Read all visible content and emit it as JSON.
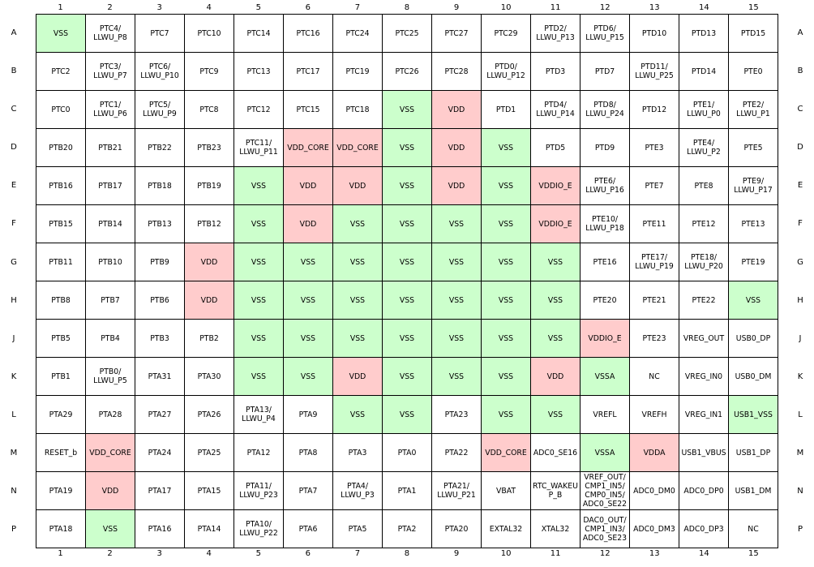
{
  "colors": {
    "vss": "#ccffcc",
    "vdd": "#ffcccc"
  },
  "columns": [
    "1",
    "2",
    "3",
    "4",
    "5",
    "6",
    "7",
    "8",
    "9",
    "10",
    "11",
    "12",
    "13",
    "14",
    "15"
  ],
  "rows": [
    {
      "label": "A",
      "cells": [
        {
          "text": "VSS",
          "t": "vss"
        },
        {
          "text": "PTC4/\nLLWU_P8"
        },
        {
          "text": "PTC7"
        },
        {
          "text": "PTC10"
        },
        {
          "text": "PTC14"
        },
        {
          "text": "PTC16"
        },
        {
          "text": "PTC24"
        },
        {
          "text": "PTC25"
        },
        {
          "text": "PTC27"
        },
        {
          "text": "PTC29"
        },
        {
          "text": "PTD2/\nLLWU_P13"
        },
        {
          "text": "PTD6/\nLLWU_P15"
        },
        {
          "text": "PTD10"
        },
        {
          "text": "PTD13"
        },
        {
          "text": "PTD15"
        }
      ]
    },
    {
      "label": "B",
      "cells": [
        {
          "text": "PTC2"
        },
        {
          "text": "PTC3/\nLLWU_P7"
        },
        {
          "text": "PTC6/\nLLWU_P10"
        },
        {
          "text": "PTC9"
        },
        {
          "text": "PTC13"
        },
        {
          "text": "PTC17"
        },
        {
          "text": "PTC19"
        },
        {
          "text": "PTC26"
        },
        {
          "text": "PTC28"
        },
        {
          "text": "PTD0/\nLLWU_P12"
        },
        {
          "text": "PTD3"
        },
        {
          "text": "PTD7"
        },
        {
          "text": "PTD11/\nLLWU_P25"
        },
        {
          "text": "PTD14"
        },
        {
          "text": "PTE0"
        }
      ]
    },
    {
      "label": "C",
      "cells": [
        {
          "text": "PTC0"
        },
        {
          "text": "PTC1/\nLLWU_P6"
        },
        {
          "text": "PTC5/\nLLWU_P9"
        },
        {
          "text": "PTC8"
        },
        {
          "text": "PTC12"
        },
        {
          "text": "PTC15"
        },
        {
          "text": "PTC18"
        },
        {
          "text": "VSS",
          "t": "vss"
        },
        {
          "text": "VDD",
          "t": "vdd"
        },
        {
          "text": "PTD1"
        },
        {
          "text": "PTD4/\nLLWU_P14"
        },
        {
          "text": "PTD8/\nLLWU_P24"
        },
        {
          "text": "PTD12"
        },
        {
          "text": "PTE1/\nLLWU_P0"
        },
        {
          "text": "PTE2/\nLLWU_P1"
        }
      ]
    },
    {
      "label": "D",
      "cells": [
        {
          "text": "PTB20"
        },
        {
          "text": "PTB21"
        },
        {
          "text": "PTB22"
        },
        {
          "text": "PTB23"
        },
        {
          "text": "PTC11/\nLLWU_P11"
        },
        {
          "text": "VDD_CORE",
          "t": "vdd"
        },
        {
          "text": "VDD_CORE",
          "t": "vdd"
        },
        {
          "text": "VSS",
          "t": "vss"
        },
        {
          "text": "VDD",
          "t": "vdd"
        },
        {
          "text": "VSS",
          "t": "vss"
        },
        {
          "text": "PTD5"
        },
        {
          "text": "PTD9"
        },
        {
          "text": "PTE3"
        },
        {
          "text": "PTE4/\nLLWU_P2"
        },
        {
          "text": "PTE5"
        }
      ]
    },
    {
      "label": "E",
      "cells": [
        {
          "text": "PTB16"
        },
        {
          "text": "PTB17"
        },
        {
          "text": "PTB18"
        },
        {
          "text": "PTB19"
        },
        {
          "text": "VSS",
          "t": "vss"
        },
        {
          "text": "VDD",
          "t": "vdd"
        },
        {
          "text": "VDD",
          "t": "vdd"
        },
        {
          "text": "VSS",
          "t": "vss"
        },
        {
          "text": "VDD",
          "t": "vdd"
        },
        {
          "text": "VSS",
          "t": "vss"
        },
        {
          "text": "VDDIO_E",
          "t": "vdd"
        },
        {
          "text": "PTE6/\nLLWU_P16"
        },
        {
          "text": "PTE7"
        },
        {
          "text": "PTE8"
        },
        {
          "text": "PTE9/\nLLWU_P17"
        }
      ]
    },
    {
      "label": "F",
      "cells": [
        {
          "text": "PTB15"
        },
        {
          "text": "PTB14"
        },
        {
          "text": "PTB13"
        },
        {
          "text": "PTB12"
        },
        {
          "text": "VSS",
          "t": "vss"
        },
        {
          "text": "VDD",
          "t": "vdd"
        },
        {
          "text": "VSS",
          "t": "vss"
        },
        {
          "text": "VSS",
          "t": "vss"
        },
        {
          "text": "VSS",
          "t": "vss"
        },
        {
          "text": "VSS",
          "t": "vss"
        },
        {
          "text": "VDDIO_E",
          "t": "vdd"
        },
        {
          "text": "PTE10/\nLLWU_P18"
        },
        {
          "text": "PTE11"
        },
        {
          "text": "PTE12"
        },
        {
          "text": "PTE13"
        }
      ]
    },
    {
      "label": "G",
      "cells": [
        {
          "text": "PTB11"
        },
        {
          "text": "PTB10"
        },
        {
          "text": "PTB9"
        },
        {
          "text": "VDD",
          "t": "vdd"
        },
        {
          "text": "VSS",
          "t": "vss"
        },
        {
          "text": "VSS",
          "t": "vss"
        },
        {
          "text": "VSS",
          "t": "vss"
        },
        {
          "text": "VSS",
          "t": "vss"
        },
        {
          "text": "VSS",
          "t": "vss"
        },
        {
          "text": "VSS",
          "t": "vss"
        },
        {
          "text": "VSS",
          "t": "vss"
        },
        {
          "text": "PTE16"
        },
        {
          "text": "PTE17/\nLLWU_P19"
        },
        {
          "text": "PTE18/\nLLWU_P20"
        },
        {
          "text": "PTE19"
        }
      ]
    },
    {
      "label": "H",
      "cells": [
        {
          "text": "PTB8"
        },
        {
          "text": "PTB7"
        },
        {
          "text": "PTB6"
        },
        {
          "text": "VDD",
          "t": "vdd"
        },
        {
          "text": "VSS",
          "t": "vss"
        },
        {
          "text": "VSS",
          "t": "vss"
        },
        {
          "text": "VSS",
          "t": "vss"
        },
        {
          "text": "VSS",
          "t": "vss"
        },
        {
          "text": "VSS",
          "t": "vss"
        },
        {
          "text": "VSS",
          "t": "vss"
        },
        {
          "text": "VSS",
          "t": "vss"
        },
        {
          "text": "PTE20"
        },
        {
          "text": "PTE21"
        },
        {
          "text": "PTE22"
        },
        {
          "text": "VSS",
          "t": "vss"
        }
      ]
    },
    {
      "label": "J",
      "cells": [
        {
          "text": "PTB5"
        },
        {
          "text": "PTB4"
        },
        {
          "text": "PTB3"
        },
        {
          "text": "PTB2"
        },
        {
          "text": "VSS",
          "t": "vss"
        },
        {
          "text": "VSS",
          "t": "vss"
        },
        {
          "text": "VSS",
          "t": "vss"
        },
        {
          "text": "VSS",
          "t": "vss"
        },
        {
          "text": "VSS",
          "t": "vss"
        },
        {
          "text": "VSS",
          "t": "vss"
        },
        {
          "text": "VSS",
          "t": "vss"
        },
        {
          "text": "VDDIO_E",
          "t": "vdd"
        },
        {
          "text": "PTE23"
        },
        {
          "text": "VREG_OUT"
        },
        {
          "text": "USB0_DP"
        }
      ]
    },
    {
      "label": "K",
      "cells": [
        {
          "text": "PTB1"
        },
        {
          "text": "PTB0/\nLLWU_P5"
        },
        {
          "text": "PTA31"
        },
        {
          "text": "PTA30"
        },
        {
          "text": "VSS",
          "t": "vss"
        },
        {
          "text": "VSS",
          "t": "vss"
        },
        {
          "text": "VDD",
          "t": "vdd"
        },
        {
          "text": "VSS",
          "t": "vss"
        },
        {
          "text": "VSS",
          "t": "vss"
        },
        {
          "text": "VSS",
          "t": "vss"
        },
        {
          "text": "VDD",
          "t": "vdd"
        },
        {
          "text": "VSSA",
          "t": "vss"
        },
        {
          "text": "NC"
        },
        {
          "text": "VREG_IN0"
        },
        {
          "text": "USB0_DM"
        }
      ]
    },
    {
      "label": "L",
      "cells": [
        {
          "text": "PTA29"
        },
        {
          "text": "PTA28"
        },
        {
          "text": "PTA27"
        },
        {
          "text": "PTA26"
        },
        {
          "text": "PTA13/\nLLWU_P4"
        },
        {
          "text": "PTA9"
        },
        {
          "text": "VSS",
          "t": "vss"
        },
        {
          "text": "VSS",
          "t": "vss"
        },
        {
          "text": "PTA23"
        },
        {
          "text": "VSS",
          "t": "vss"
        },
        {
          "text": "VSS",
          "t": "vss"
        },
        {
          "text": "VREFL"
        },
        {
          "text": "VREFH"
        },
        {
          "text": "VREG_IN1"
        },
        {
          "text": "USB1_VSS",
          "t": "vss"
        }
      ]
    },
    {
      "label": "M",
      "cells": [
        {
          "text": "RESET_b"
        },
        {
          "text": "VDD_CORE",
          "t": "vdd"
        },
        {
          "text": "PTA24"
        },
        {
          "text": "PTA25"
        },
        {
          "text": "PTA12"
        },
        {
          "text": "PTA8"
        },
        {
          "text": "PTA3"
        },
        {
          "text": "PTA0"
        },
        {
          "text": "PTA22"
        },
        {
          "text": "VDD_CORE",
          "t": "vdd"
        },
        {
          "text": "ADC0_SE16"
        },
        {
          "text": "VSSA",
          "t": "vss"
        },
        {
          "text": "VDDA",
          "t": "vdd"
        },
        {
          "text": "USB1_VBUS"
        },
        {
          "text": "USB1_DP"
        }
      ]
    },
    {
      "label": "N",
      "cells": [
        {
          "text": "PTA19"
        },
        {
          "text": "VDD",
          "t": "vdd"
        },
        {
          "text": "PTA17"
        },
        {
          "text": "PTA15"
        },
        {
          "text": "PTA11/\nLLWU_P23"
        },
        {
          "text": "PTA7"
        },
        {
          "text": "PTA4/\nLLWU_P3"
        },
        {
          "text": "PTA1"
        },
        {
          "text": "PTA21/\nLLWU_P21"
        },
        {
          "text": "VBAT"
        },
        {
          "text": "RTC_WAKEU\nP_B"
        },
        {
          "text": "VREF_OUT/\nCMP1_IN5/\nCMP0_IN5/\nADC0_SE22"
        },
        {
          "text": "ADC0_DM0"
        },
        {
          "text": "ADC0_DP0"
        },
        {
          "text": "USB1_DM"
        }
      ]
    },
    {
      "label": "P",
      "cells": [
        {
          "text": "PTA18"
        },
        {
          "text": "VSS",
          "t": "vss"
        },
        {
          "text": "PTA16"
        },
        {
          "text": "PTA14"
        },
        {
          "text": "PTA10/\nLLWU_P22"
        },
        {
          "text": "PTA6"
        },
        {
          "text": "PTA5"
        },
        {
          "text": "PTA2"
        },
        {
          "text": "PTA20"
        },
        {
          "text": "EXTAL32"
        },
        {
          "text": "XTAL32"
        },
        {
          "text": "DAC0_OUT/\nCMP1_IN3/\nADC0_SE23"
        },
        {
          "text": "ADC0_DM3"
        },
        {
          "text": "ADC0_DP3"
        },
        {
          "text": "NC"
        }
      ]
    }
  ]
}
